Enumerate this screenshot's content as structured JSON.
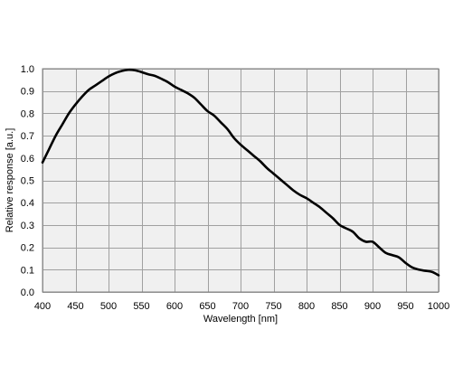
{
  "chart_data": {
    "type": "line",
    "title": "",
    "xlabel": "Wavelength  [nm]",
    "ylabel": "Relative  response [a.u.]",
    "xlim": [
      400,
      1000
    ],
    "ylim": [
      0.0,
      1.0
    ],
    "grid": true,
    "colors": {
      "plot_background": "#f0f0f0",
      "grid": "#a0a0a0",
      "line": "#000000"
    },
    "x_ticks": [
      "400",
      "450",
      "500",
      "550",
      "600",
      "650",
      "700",
      "750",
      "800",
      "850",
      "900",
      "950",
      "1000"
    ],
    "y_ticks": [
      "0.0",
      "0.1",
      "0.2",
      "0.3",
      "0.4",
      "0.5",
      "0.6",
      "0.7",
      "0.8",
      "0.9",
      "1.0"
    ],
    "series": [
      {
        "x": [
          400,
          410,
          420,
          430,
          440,
          450,
          460,
          470,
          480,
          490,
          500,
          510,
          520,
          530,
          540,
          550,
          560,
          570,
          580,
          590,
          600,
          610,
          620,
          630,
          640,
          650,
          660,
          670,
          680,
          690,
          700,
          710,
          720,
          730,
          740,
          750,
          760,
          770,
          780,
          790,
          800,
          810,
          820,
          830,
          840,
          850,
          860,
          870,
          880,
          890,
          900,
          910,
          920,
          930,
          940,
          950,
          960,
          970,
          980,
          990,
          1000
        ],
        "y": [
          0.58,
          0.64,
          0.7,
          0.75,
          0.8,
          0.84,
          0.875,
          0.905,
          0.925,
          0.945,
          0.965,
          0.98,
          0.99,
          0.995,
          0.993,
          0.985,
          0.975,
          0.968,
          0.955,
          0.94,
          0.92,
          0.905,
          0.89,
          0.87,
          0.84,
          0.81,
          0.79,
          0.76,
          0.73,
          0.69,
          0.66,
          0.635,
          0.61,
          0.585,
          0.555,
          0.53,
          0.505,
          0.48,
          0.455,
          0.435,
          0.42,
          0.4,
          0.38,
          0.355,
          0.33,
          0.3,
          0.285,
          0.27,
          0.24,
          0.225,
          0.225,
          0.2,
          0.175,
          0.165,
          0.155,
          0.13,
          0.11,
          0.1,
          0.095,
          0.09,
          0.075
        ]
      }
    ]
  }
}
